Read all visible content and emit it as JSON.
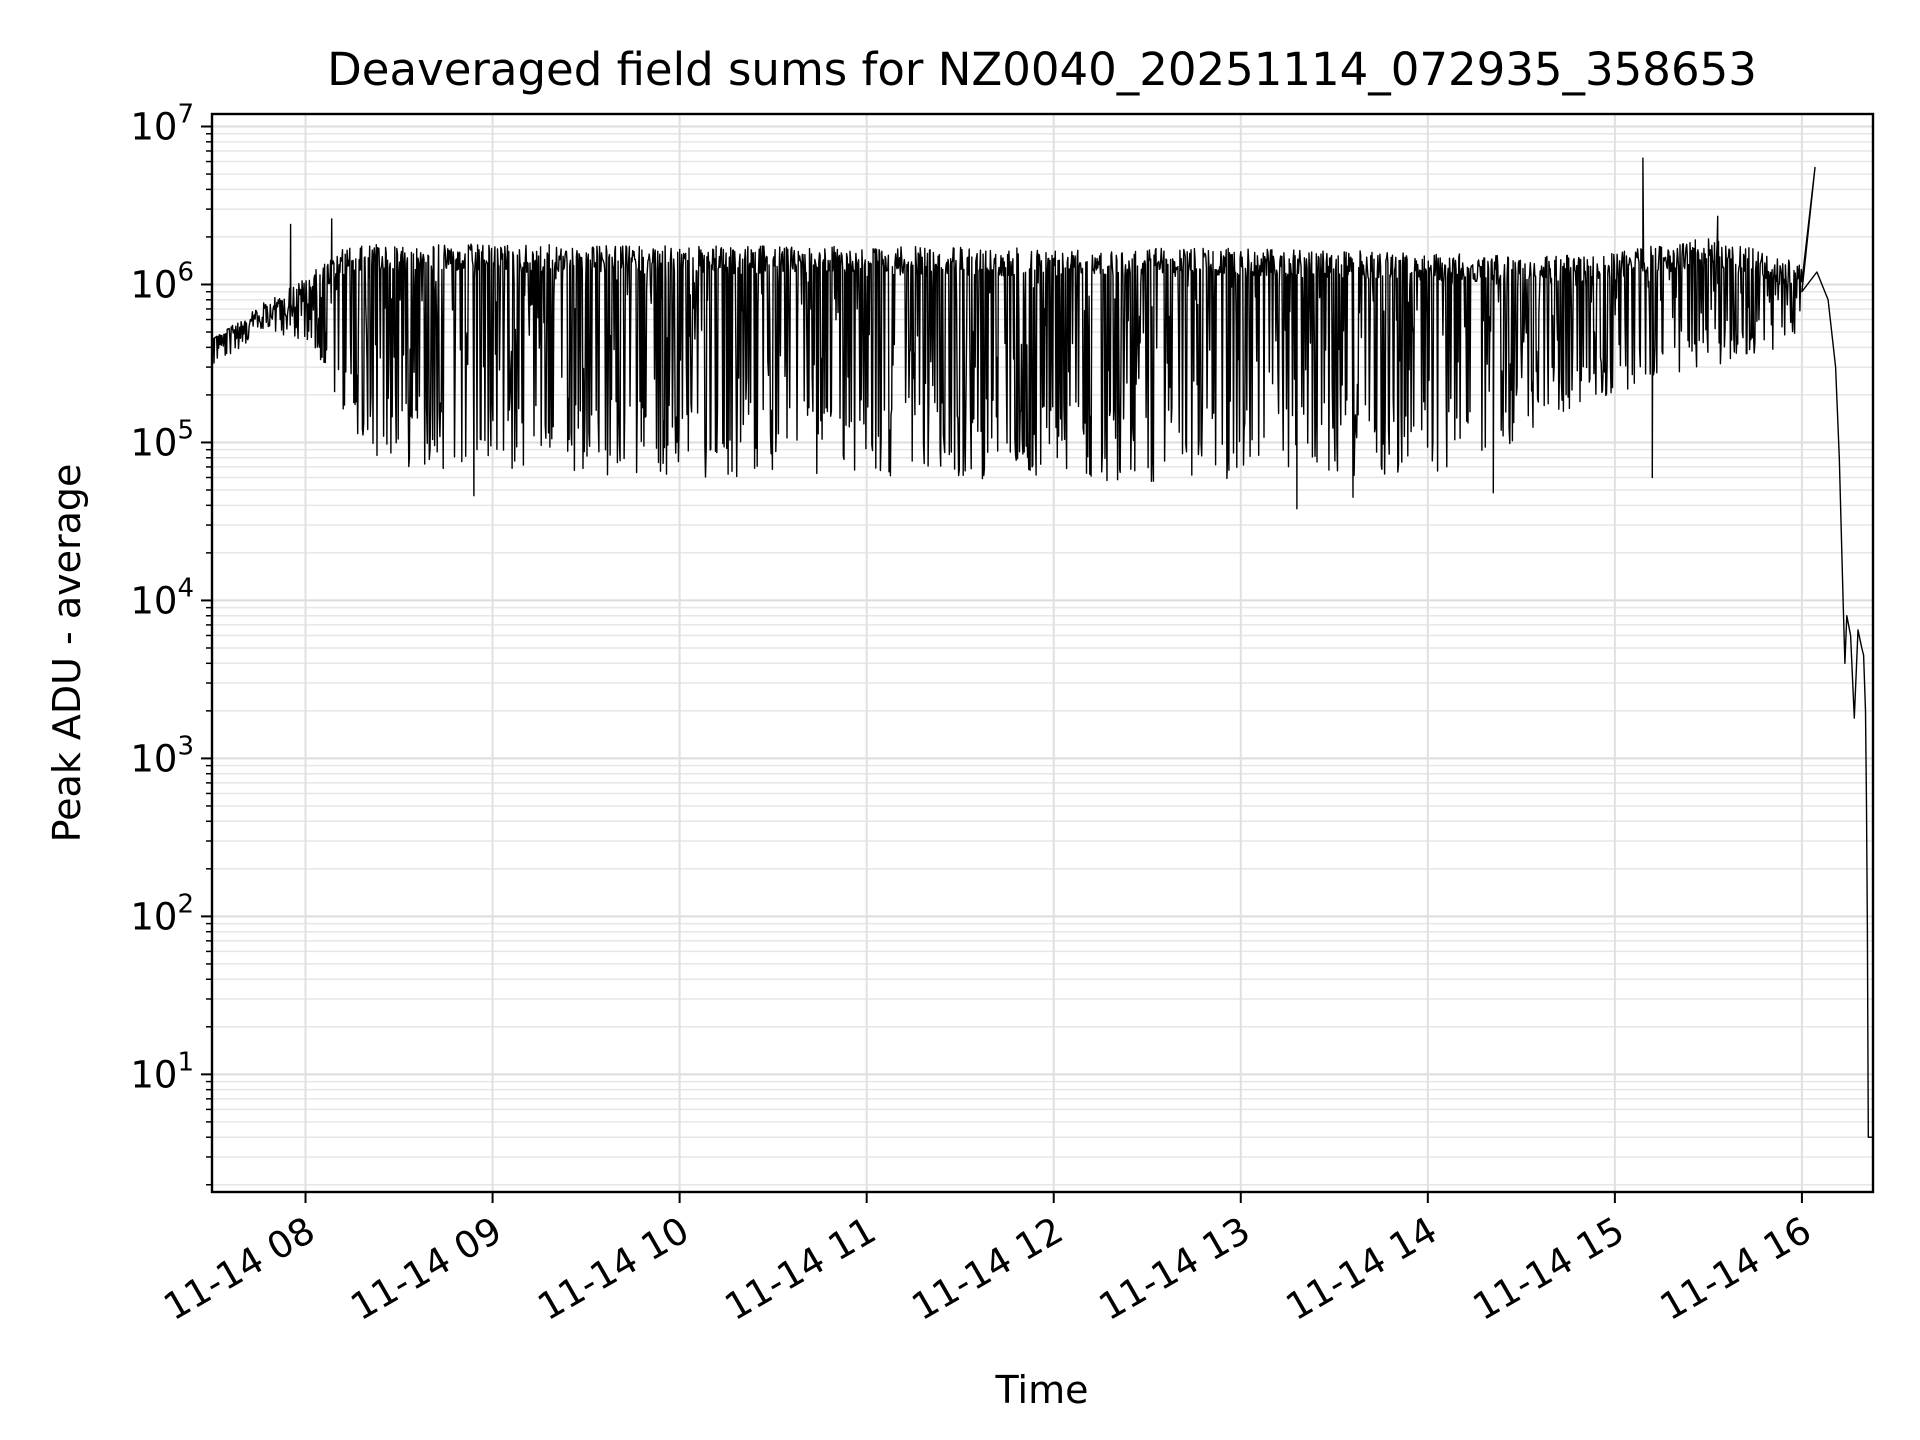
{
  "chart_data": {
    "type": "line",
    "title": "Deaveraged field sums for NZ0040_20251114_072935_358653",
    "xlabel": "Time",
    "ylabel": "Peak ADU - average",
    "yscale": "log",
    "ylim": [
      1.8,
      12000000
    ],
    "xlim_hours": [
      7.5,
      16.38
    ],
    "grid": true,
    "line_color": "#000000",
    "x_ticks": [
      {
        "hour": 8,
        "label": "11-14 08"
      },
      {
        "hour": 9,
        "label": "11-14 09"
      },
      {
        "hour": 10,
        "label": "11-14 10"
      },
      {
        "hour": 11,
        "label": "11-14 11"
      },
      {
        "hour": 12,
        "label": "11-14 12"
      },
      {
        "hour": 13,
        "label": "11-14 13"
      },
      {
        "hour": 14,
        "label": "11-14 14"
      },
      {
        "hour": 15,
        "label": "11-14 15"
      },
      {
        "hour": 16,
        "label": "11-14 16"
      }
    ],
    "y_ticks": [
      {
        "value": 10,
        "base": "10",
        "exp": "1"
      },
      {
        "value": 100,
        "base": "10",
        "exp": "2"
      },
      {
        "value": 1000,
        "base": "10",
        "exp": "3"
      },
      {
        "value": 10000,
        "base": "10",
        "exp": "4"
      },
      {
        "value": 100000,
        "base": "10",
        "exp": "5"
      },
      {
        "value": 1000000,
        "base": "10",
        "exp": "6"
      },
      {
        "value": 10000000,
        "base": "10",
        "exp": "7"
      }
    ],
    "series": [
      {
        "name": "Deaveraged field sum",
        "envelope_high": [
          [
            7.5,
            450000
          ],
          [
            7.7,
            650000
          ],
          [
            7.85,
            900000
          ],
          [
            8.0,
            1100000
          ],
          [
            8.2,
            1700000
          ],
          [
            8.4,
            1800000
          ],
          [
            9.0,
            1800000
          ],
          [
            10.0,
            1750000
          ],
          [
            11.0,
            1750000
          ],
          [
            12.0,
            1700000
          ],
          [
            13.0,
            1700000
          ],
          [
            13.5,
            1650000
          ],
          [
            14.0,
            1600000
          ],
          [
            14.5,
            1500000
          ],
          [
            15.0,
            1600000
          ],
          [
            15.5,
            2000000
          ],
          [
            15.9,
            1500000
          ],
          [
            16.0,
            1300000
          ]
        ],
        "envelope_low": [
          [
            7.5,
            450000
          ],
          [
            7.7,
            550000
          ],
          [
            7.85,
            500000
          ],
          [
            8.0,
            400000
          ],
          [
            8.15,
            200000
          ],
          [
            8.3,
            90000
          ],
          [
            8.5,
            70000
          ],
          [
            9.0,
            65000
          ],
          [
            10.0,
            60000
          ],
          [
            11.0,
            60000
          ],
          [
            12.0,
            58000
          ],
          [
            13.0,
            55000
          ],
          [
            14.0,
            60000
          ],
          [
            14.4,
            90000
          ],
          [
            14.7,
            150000
          ],
          [
            15.0,
            200000
          ],
          [
            15.5,
            300000
          ],
          [
            15.9,
            400000
          ],
          [
            16.0,
            500000
          ]
        ],
        "spikes": [
          [
            7.92,
            2400000
          ],
          [
            8.14,
            2600000
          ],
          [
            15.15,
            6300000
          ],
          [
            15.55,
            2700000
          ],
          [
            16.07,
            5500000
          ],
          [
            8.9,
            46000
          ],
          [
            13.3,
            38000
          ],
          [
            13.6,
            45000
          ],
          [
            15.2,
            60000
          ],
          [
            14.35,
            48000
          ]
        ],
        "tail": [
          [
            16.0,
            900000
          ],
          [
            16.08,
            1200000
          ],
          [
            16.14,
            800000
          ],
          [
            16.18,
            300000
          ],
          [
            16.2,
            80000
          ],
          [
            16.22,
            10000
          ],
          [
            16.23,
            4000
          ],
          [
            16.24,
            8000
          ],
          [
            16.26,
            6000
          ],
          [
            16.28,
            1800
          ],
          [
            16.3,
            6500
          ],
          [
            16.32,
            5000
          ],
          [
            16.33,
            4500
          ],
          [
            16.34,
            2000
          ],
          [
            16.345,
            500
          ],
          [
            16.35,
            80
          ],
          [
            16.355,
            4
          ],
          [
            16.38,
            4
          ]
        ]
      }
    ]
  }
}
